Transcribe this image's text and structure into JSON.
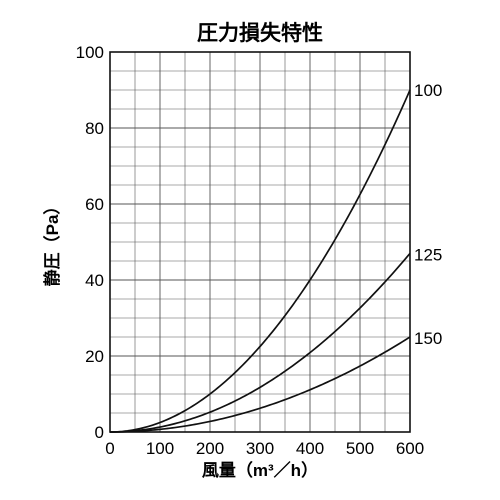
{
  "chart_data": {
    "type": "line",
    "title": "圧力損失特性",
    "xlabel": "風量（m³／h）",
    "ylabel": "静圧（Pa）",
    "xlim": [
      0,
      600
    ],
    "ylim": [
      0,
      100
    ],
    "x_ticks": [
      "0",
      "100",
      "200",
      "300",
      "400",
      "500",
      "600"
    ],
    "y_ticks": [
      "0",
      "20",
      "40",
      "60",
      "80",
      "100"
    ],
    "grid": true,
    "legend": "series labels at right end of each curve",
    "series": [
      {
        "name": "100",
        "x": [
          0,
          100,
          200,
          300,
          400,
          500,
          600
        ],
        "y": [
          0,
          2.5,
          10,
          22.5,
          40,
          62.5,
          90
        ]
      },
      {
        "name": "125",
        "x": [
          0,
          100,
          200,
          300,
          400,
          500,
          600
        ],
        "y": [
          0,
          1.3,
          5.2,
          11.8,
          21,
          32.5,
          47
        ]
      },
      {
        "name": "150",
        "x": [
          0,
          100,
          200,
          300,
          400,
          500,
          600
        ],
        "y": [
          0,
          0.7,
          2.8,
          6.3,
          11.2,
          17.5,
          25
        ]
      }
    ]
  }
}
